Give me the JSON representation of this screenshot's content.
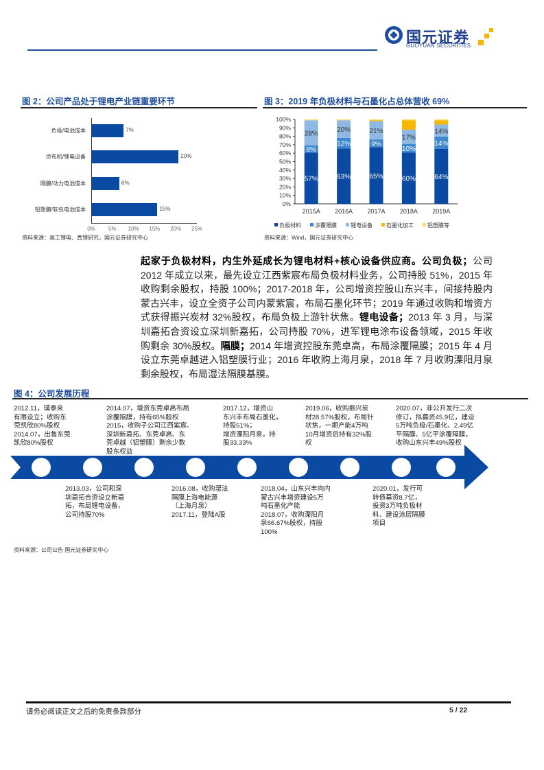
{
  "header": {
    "brand_cn": "国元证券",
    "brand_en": "GUOYUAN SECURITIES",
    "colors": {
      "blue": "#1f4ea1",
      "gold": "#f5b800"
    }
  },
  "fig2": {
    "title": "图 2：公司产品处于锂电产业链重要环节",
    "source": "资料来源：高工锂电、真锂研究，国元证券研究中心",
    "chart_data": {
      "type": "bar",
      "orientation": "horizontal",
      "categories": [
        "负极/电池成本",
        "涂布机/锂电设备",
        "隔膜/动力电池成本",
        "铝塑膜/软包电池成本"
      ],
      "values": [
        7,
        20,
        6,
        15
      ],
      "value_labels": [
        "7%",
        "20%",
        "6%",
        "15%"
      ],
      "xlim": [
        0,
        25
      ],
      "xticks": [
        "0%",
        "5%",
        "10%",
        "15%",
        "20%",
        "25%"
      ],
      "color": "#0b4aa2"
    }
  },
  "fig3": {
    "title": "图 3：2019 年负极材料与石墨化占总体营收 69%",
    "source": "资料来源：Wind，国元证券研究中心",
    "chart_data": {
      "type": "bar",
      "stacked": true,
      "categories": [
        "2015A",
        "2016A",
        "2017A",
        "2018A",
        "2019A"
      ],
      "ylim": [
        0,
        100
      ],
      "yticks": [
        "0%",
        "10%",
        "20%",
        "30%",
        "40%",
        "50%",
        "60%",
        "70%",
        "80%",
        "90%",
        "100%"
      ],
      "series": [
        {
          "name": "负极材料",
          "color": "#0b4aa2",
          "values": [
            57,
            63,
            65,
            60,
            64
          ],
          "labels": [
            "57%",
            "63%",
            "65%",
            "60%",
            "64%"
          ]
        },
        {
          "name": "涂覆隔膜",
          "color": "#3a86d1",
          "values": [
            8,
            12,
            9,
            10,
            14
          ],
          "labels": [
            "8%",
            "12%",
            "9%",
            "10%",
            "14%"
          ]
        },
        {
          "name": "锂电设备",
          "color": "#8fb8e3",
          "values": [
            28,
            20,
            21,
            17,
            14
          ],
          "labels": [
            "28%",
            "20%",
            "21%",
            "17%",
            "14%"
          ]
        },
        {
          "name": "石墨化加工",
          "color": "#f5b800",
          "values": [
            0,
            0,
            1,
            11,
            5
          ],
          "labels": [
            "",
            "",
            "",
            "",
            ""
          ]
        },
        {
          "name": "铝塑膜等",
          "color": "#ffd966",
          "values": [
            1,
            1,
            1,
            1,
            1
          ],
          "labels": [
            "",
            "",
            "",
            "",
            ""
          ]
        }
      ],
      "legend": "bottom"
    }
  },
  "body": {
    "segments": [
      {
        "text": "起家于负极材料，内生外延成长为锂电材料+核心设备供应商。公司负极；",
        "bold": true
      },
      {
        "text": "公司 2012 年成立以来，最先设立江西紫宸布局负极材料业务，公司持股 51%，2015 年收购剩余股权，持股 100%；2017-2018 年，公司增资控股山东兴丰，间接持股内蒙古兴丰，设立全资子公司内蒙紫宸，布局石墨化环节；2019 年通过收购和增资方式获得振兴炭材 32%股权，布局负极上游针状焦。",
        "bold": false
      },
      {
        "text": "锂电设备；",
        "bold": true
      },
      {
        "text": "2013 年 3 月，与深圳嘉拓合资设立深圳新嘉拓，公司持股 70%，进军锂电涂布设备领域，2015 年收购剩余 30%股权。",
        "bold": false
      },
      {
        "text": "隔膜；",
        "bold": true
      },
      {
        "text": "2014 年增资控股东莞卓高，布局涂覆隔膜；2015 年 4 月设立东莞卓越进入铝塑膜行业；2016 年收购上海月泉，2018 年 7 月收购溧阳月泉剩余股权，布局湿法隔膜基膜。",
        "bold": false
      }
    ]
  },
  "fig4": {
    "title": "图 4：公司发展历程",
    "source": "资料来源：公司公告 国元证券研究中心",
    "top_events": [
      {
        "lines": [
          "2012.11，璞泰来",
          "有限设立；收购东",
          "莞凯欣80%股权",
          "2014.07，出售东莞",
          "凯欣80%股权"
        ]
      },
      {
        "lines": [
          "2014.07，增资东莞卓高布局",
          "涂覆隔膜，持有65%股权",
          "2015，收购子公司江西紫宸、",
          "深圳新嘉拓、东莞卓高、东",
          "莞卓越（铝塑膜）剩余少数",
          "股东权益"
        ]
      },
      {
        "lines": [
          "2017.12，增资山",
          "东兴丰布局石墨化，",
          "持股51%；",
          "增资溧阳月泉，持",
          "股33.33%"
        ]
      },
      {
        "lines": [
          "2019.06，收购振兴炭",
          "材28.57%股权，布局针",
          "状焦，一期产能4万吨",
          "10月增资后持有32%股",
          "权"
        ]
      },
      {
        "lines": [
          "2020.07，非公开发行二次",
          "修订，拟募资45.9亿，建设",
          "5万吨负极/石墨化、2.49亿",
          "平隔膜、5亿平涂覆隔膜，",
          "收购山东兴丰49%股权"
        ]
      }
    ],
    "bottom_events": [
      {
        "lines": [
          "2013.03，公司和深",
          "圳嘉拓合资设立新嘉",
          "拓，布局锂电设备，",
          "公司持股70%"
        ]
      },
      {
        "lines": [
          "2016.08，收购湿法",
          "隔膜上海电能源",
          "（上海月泉）",
          "2017.11，登陆A股"
        ]
      },
      {
        "lines": [
          "2018.04，山东兴丰向内",
          "蒙古兴丰增资建设5万",
          "吨石墨化产能",
          "2018.07，收购溧阳月",
          "泉66.67%股权，持股",
          "100%"
        ]
      },
      {
        "lines": [
          "2020.01，发行可",
          "转债募资8.7亿，",
          "投资3万吨负极材",
          "料、建设涂层隔膜",
          "项目"
        ]
      }
    ]
  },
  "footer": {
    "disclaimer": "请务必阅读正文之后的免责条款部分",
    "page": "5 / 22"
  }
}
